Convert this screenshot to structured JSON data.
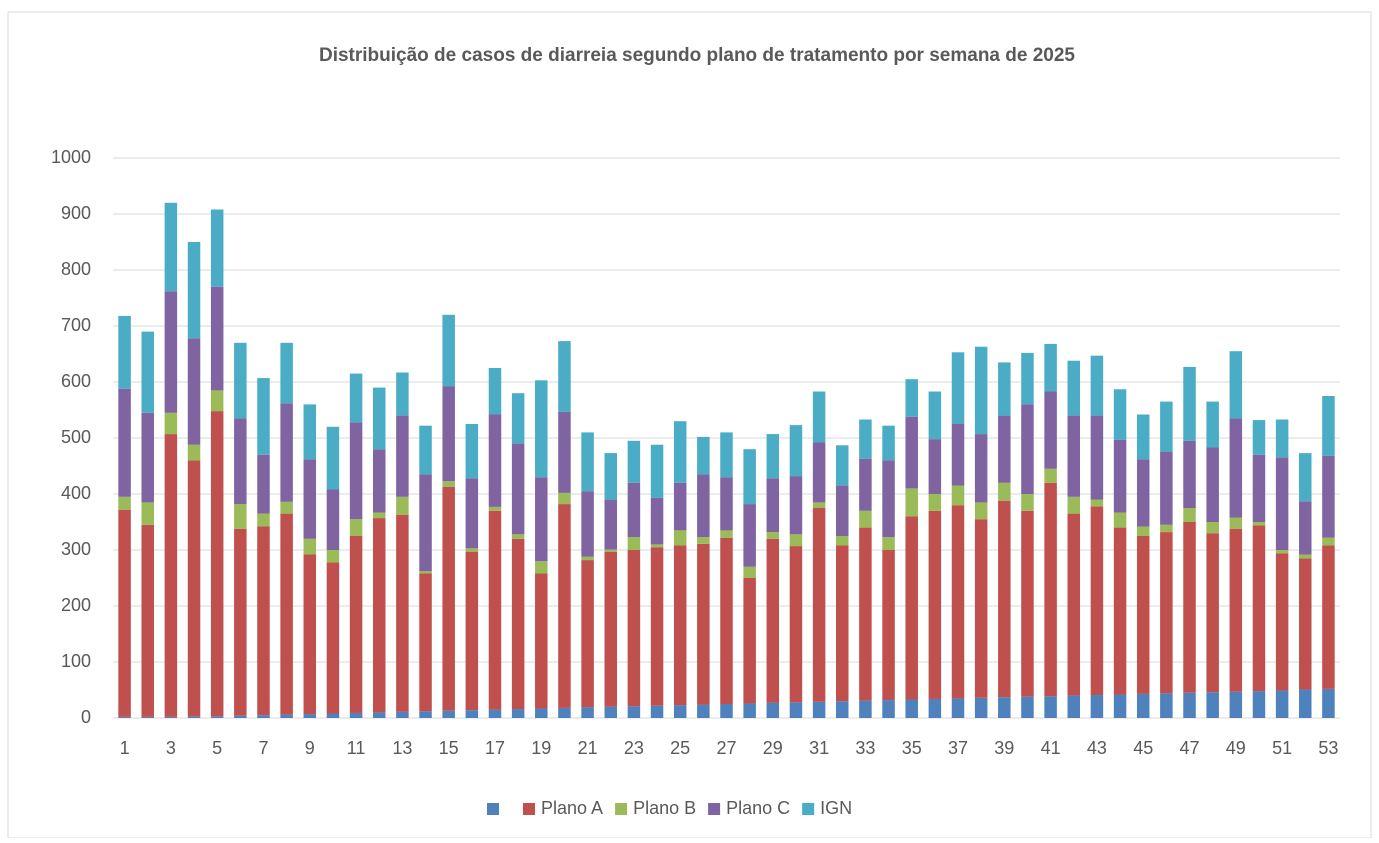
{
  "chart_data": {
    "type": "bar",
    "stacked": true,
    "title": "Distribuição de casos de diarreia segundo plano de tratamento por semana de 2025",
    "categories": [
      "1",
      null,
      "3",
      null,
      "5",
      null,
      "7",
      null,
      "9",
      null,
      "11",
      null,
      "13",
      null,
      "15",
      null,
      "17",
      null,
      "19",
      null,
      "21",
      null,
      "23",
      null,
      "25",
      null,
      "27",
      null,
      "29",
      null,
      "31",
      null,
      "33",
      null,
      "35",
      null,
      "37",
      null,
      "39",
      null,
      "41",
      null,
      "43",
      null,
      "45",
      null,
      "47",
      null,
      "49",
      null,
      "51",
      null,
      "53"
    ],
    "series": [
      {
        "name": null,
        "color": "#4f81bd",
        "values": [
          2,
          2,
          2,
          3,
          3,
          4,
          5,
          6,
          7,
          8,
          9,
          10,
          11,
          12,
          13,
          14,
          15,
          16,
          17,
          18,
          19,
          20,
          21,
          22,
          23,
          24,
          25,
          26,
          27,
          28,
          29,
          30,
          31,
          32,
          33,
          34,
          35,
          36,
          37,
          38,
          39,
          40,
          41,
          42,
          43,
          44,
          45,
          46,
          47,
          48,
          49,
          51,
          52
        ]
      },
      {
        "name": "Plano A",
        "color": "#c0504d",
        "values": [
          370,
          343,
          505,
          457,
          545,
          334,
          337,
          359,
          285,
          270,
          316,
          347,
          352,
          246,
          400,
          283,
          355,
          304,
          241,
          364,
          263,
          277,
          279,
          283,
          285,
          287,
          297,
          224,
          293,
          279,
          346,
          278,
          309,
          268,
          327,
          336,
          345,
          319,
          351,
          332,
          381,
          325,
          337,
          298,
          282,
          288,
          305,
          284,
          291,
          296,
          245,
          234,
          256
        ]
      },
      {
        "name": "Plano B",
        "color": "#9bbb59",
        "values": [
          23,
          40,
          38,
          28,
          37,
          44,
          23,
          21,
          28,
          22,
          30,
          10,
          32,
          4,
          10,
          6,
          7,
          8,
          22,
          20,
          6,
          4,
          23,
          5,
          27,
          12,
          13,
          20,
          12,
          21,
          10,
          17,
          30,
          23,
          50,
          30,
          35,
          30,
          32,
          30,
          25,
          30,
          12,
          27,
          17,
          13,
          25,
          20,
          20,
          6,
          6,
          7,
          14
        ]
      },
      {
        "name": "Plano C",
        "color": "#8064a2",
        "values": [
          193,
          160,
          217,
          190,
          185,
          153,
          105,
          176,
          142,
          108,
          173,
          113,
          145,
          173,
          169,
          125,
          165,
          162,
          150,
          145,
          117,
          89,
          97,
          83,
          85,
          112,
          95,
          112,
          96,
          104,
          107,
          90,
          93,
          137,
          128,
          98,
          110,
          122,
          120,
          160,
          138,
          145,
          150,
          130,
          120,
          130,
          120,
          133,
          177,
          120,
          165,
          95,
          146
        ]
      },
      {
        "name": "IGN",
        "color": "#4bacc6",
        "values": [
          130,
          145,
          158,
          172,
          138,
          135,
          137,
          108,
          98,
          112,
          87,
          110,
          77,
          87,
          128,
          97,
          83,
          90,
          173,
          126,
          105,
          83,
          75,
          95,
          110,
          67,
          80,
          98,
          79,
          91,
          91,
          72,
          70,
          62,
          67,
          85,
          128,
          156,
          95,
          92,
          85,
          98,
          107,
          90,
          80,
          90,
          132,
          82,
          120,
          62,
          68,
          86,
          107
        ]
      }
    ],
    "ylim": [
      0,
      1000
    ],
    "yticks": [
      0,
      100,
      200,
      300,
      400,
      500,
      600,
      700,
      800,
      900,
      1000
    ],
    "grid": true,
    "legend": "bottom"
  }
}
